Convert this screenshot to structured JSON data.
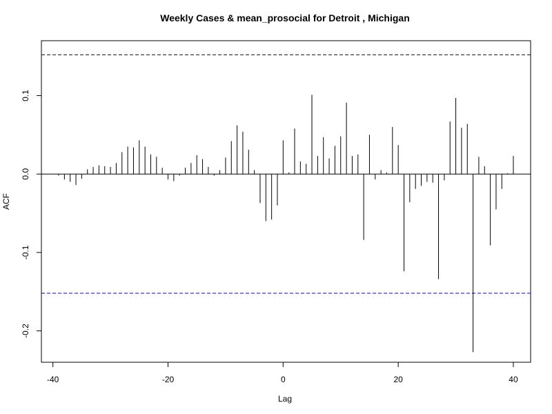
{
  "chart_data": {
    "type": "bar",
    "style": "acf-spikes",
    "title": "Weekly Cases & mean_prosocial for Detroit , Michigan",
    "xlabel": "Lag",
    "ylabel": "ACF",
    "xlim": [
      -42,
      43
    ],
    "ylim": [
      -0.24,
      0.17
    ],
    "x_ticks": [
      -40,
      -20,
      0,
      20,
      40
    ],
    "x_tick_labels": [
      "-40",
      "-20",
      "0",
      "20",
      "40"
    ],
    "y_ticks": [
      -0.2,
      -0.1,
      0.0,
      0.1
    ],
    "y_tick_labels": [
      "-0.2",
      "-0.1",
      "0.0",
      "0.1"
    ],
    "ci_upper": 0.152,
    "ci_lower": -0.152,
    "grid": false,
    "legend": "none",
    "colors": {
      "spike": "#000000",
      "ci": "#0000cc",
      "zero": "#000000"
    },
    "x": [
      -39,
      -38,
      -37,
      -36,
      -35,
      -34,
      -33,
      -32,
      -31,
      -30,
      -29,
      -28,
      -27,
      -26,
      -25,
      -24,
      -23,
      -22,
      -21,
      -20,
      -19,
      -18,
      -17,
      -16,
      -15,
      -14,
      -13,
      -12,
      -11,
      -10,
      -9,
      -8,
      -7,
      -6,
      -5,
      -4,
      -3,
      -2,
      -1,
      0,
      1,
      2,
      3,
      4,
      5,
      6,
      7,
      8,
      9,
      10,
      11,
      12,
      13,
      14,
      15,
      16,
      17,
      18,
      19,
      20,
      21,
      22,
      23,
      24,
      25,
      26,
      27,
      28,
      29,
      30,
      31,
      32,
      33,
      34,
      35,
      36,
      37,
      38,
      39,
      40
    ],
    "values": [
      -0.002,
      -0.007,
      -0.01,
      -0.014,
      -0.006,
      0.006,
      0.009,
      0.011,
      0.01,
      0.009,
      0.014,
      0.028,
      0.035,
      0.034,
      0.043,
      0.035,
      0.025,
      0.022,
      0.008,
      -0.007,
      -0.009,
      -0.002,
      0.008,
      0.014,
      0.024,
      0.019,
      0.009,
      -0.002,
      0.005,
      0.021,
      0.042,
      0.062,
      0.054,
      0.031,
      0.005,
      -0.037,
      -0.06,
      -0.058,
      -0.04,
      0.043,
      0.002,
      0.058,
      0.016,
      0.013,
      0.101,
      0.023,
      0.047,
      0.02,
      0.036,
      0.048,
      0.091,
      0.023,
      0.025,
      -0.084,
      0.05,
      -0.007,
      0.005,
      0.002,
      0.06,
      0.037,
      -0.124,
      -0.036,
      -0.019,
      -0.015,
      -0.01,
      -0.011,
      -0.134,
      -0.008,
      0.067,
      0.097,
      0.059,
      0.064,
      -0.227,
      0.022,
      0.01,
      -0.091,
      -0.045,
      -0.019,
      0.001,
      0.023
    ]
  }
}
